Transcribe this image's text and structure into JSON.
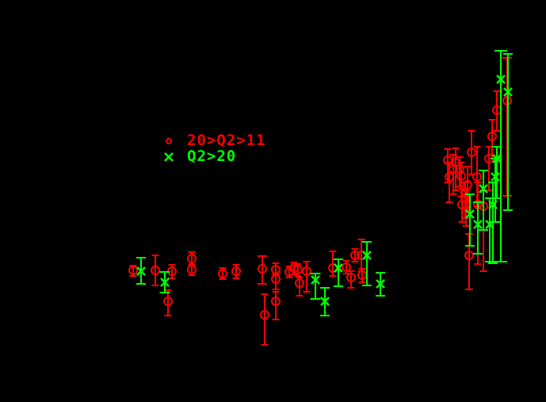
{
  "chart_data": {
    "type": "scatter",
    "background_color": "#000000",
    "axes": {
      "visible": false,
      "tick_labels": false,
      "title": ""
    },
    "coordinate_space": "image pixels, 689x507, y increases downward",
    "points_format": "[x, y, err_top_y, err_bottom_y, optional_cap_width]",
    "legend": {
      "position": "upper-left-of-center",
      "entries": [
        {
          "marker": "circle",
          "label": "20>Q2>11",
          "color": "#ff0000"
        },
        {
          "marker": "cross",
          "label": "Q2>20",
          "color": "#00ff00"
        }
      ]
    },
    "series": [
      {
        "name": "20>Q2>11",
        "marker": "circle",
        "color": "#ff0000",
        "marker_radius": 5,
        "stroke_width": 2,
        "default_cap_width": 9,
        "points": [
          [
            168,
            341,
            335,
            348
          ],
          [
            196,
            341,
            322,
            360
          ],
          [
            217,
            342,
            334,
            351
          ],
          [
            212,
            380,
            366,
            398
          ],
          [
            242,
            326,
            318,
            334
          ],
          [
            242,
            340,
            333,
            347
          ],
          [
            281,
            345,
            338,
            352
          ],
          [
            298,
            342,
            334,
            351
          ],
          [
            331,
            339,
            323,
            358,
            12
          ],
          [
            348,
            340,
            332,
            346
          ],
          [
            348,
            352,
            346,
            365
          ],
          [
            348,
            380,
            368,
            403
          ],
          [
            334,
            397,
            371,
            435
          ],
          [
            365,
            343,
            336,
            350
          ],
          [
            371,
            338,
            331,
            346
          ],
          [
            376,
            340,
            333,
            348
          ],
          [
            378,
            357,
            350,
            373
          ],
          [
            387,
            342,
            330,
            368
          ],
          [
            420,
            338,
            317,
            348
          ],
          [
            437,
            337,
            329,
            345
          ],
          [
            443,
            350,
            342,
            363
          ],
          [
            457,
            347,
            339,
            356
          ],
          [
            448,
            322,
            314,
            330
          ],
          [
            456,
            322,
            302,
            342
          ],
          [
            565,
            202,
            188,
            230
          ],
          [
            575,
            205,
            187,
            240
          ],
          [
            572,
            213,
            195,
            245
          ],
          [
            580,
            213,
            198,
            235
          ],
          [
            567,
            223,
            205,
            255
          ],
          [
            582,
            222,
            205,
            248
          ],
          [
            590,
            233,
            210,
            265
          ],
          [
            595,
            192,
            165,
            220
          ],
          [
            602,
            223,
            185,
            260
          ],
          [
            587,
            250,
            230,
            275
          ],
          [
            583,
            258,
            238,
            280
          ],
          [
            588,
            258,
            240,
            285
          ],
          [
            603,
            258,
            230,
            333
          ],
          [
            610,
            260,
            240,
            342
          ],
          [
            617,
            200,
            185,
            240
          ],
          [
            621,
            172,
            151,
            200
          ],
          [
            627,
            139,
            115,
            165
          ],
          [
            640,
            127,
            73,
            247,
            12
          ],
          [
            592,
            322,
            295,
            365,
            10
          ]
        ]
      },
      {
        "name": "Q2>20",
        "marker": "cross",
        "color": "#00ff00",
        "marker_half_size": 5,
        "stroke_width": 2.5,
        "default_cap_width": 12,
        "points": [
          [
            178,
            342,
            325,
            358
          ],
          [
            208,
            356,
            343,
            369,
            13
          ],
          [
            398,
            353,
            345,
            377,
            13
          ],
          [
            410,
            380,
            363,
            398,
            12
          ],
          [
            427,
            338,
            327,
            361
          ],
          [
            463,
            322,
            305,
            360
          ],
          [
            480,
            358,
            344,
            373
          ],
          [
            632,
            100,
            64,
            330,
            16
          ],
          [
            641,
            116,
            68,
            265
          ],
          [
            627,
            200,
            185,
            250
          ],
          [
            625,
            223,
            200,
            280
          ],
          [
            610,
            238,
            215,
            290
          ],
          [
            622,
            258,
            230,
            332
          ],
          [
            593,
            270,
            245,
            310
          ],
          [
            603,
            283,
            255,
            320
          ],
          [
            618,
            283,
            250,
            330
          ]
        ]
      }
    ]
  }
}
